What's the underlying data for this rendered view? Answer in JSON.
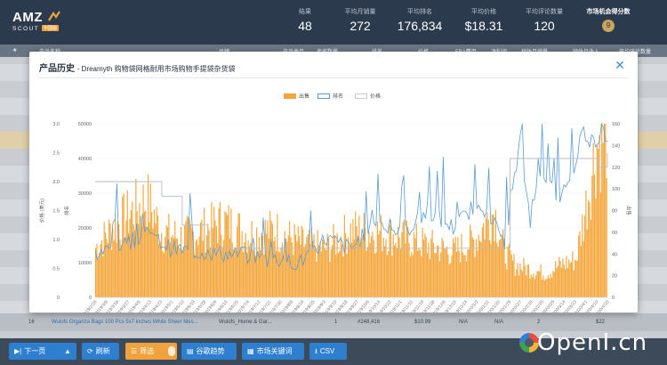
{
  "brand": {
    "name": "AMZ",
    "sub": "SCOUT",
    "badge": "中国版"
  },
  "header_stats": [
    {
      "label": "结果",
      "value": "48"
    },
    {
      "label": "平均月销量",
      "value": "272"
    },
    {
      "label": "平均排名",
      "value": "176,834"
    },
    {
      "label": "平均价格",
      "value": "$18.31"
    },
    {
      "label": "平均评论数量",
      "value": "120"
    },
    {
      "label": "市场机会得分数",
      "value": "9"
    }
  ],
  "table_header": [
    "产品名称",
    "品牌",
    "产品类目",
    "卖家数量",
    "排名",
    "价格",
    "FBA费用",
    "净利润",
    "预估月销量",
    "预估月收入",
    "平均评论数量"
  ],
  "visible_row": {
    "index": "16",
    "title": "Wulofs Organza Bags 100 Pcs 5x7 inches White Sheer Mes...",
    "brand": "Wulofs_Home & Gar...",
    "sellers": "1",
    "rank": "#248,416",
    "price": "$10.99",
    "fba": "N/A",
    "net": "N/A",
    "sales": "2",
    "revenue": "$22"
  },
  "toolbar": {
    "next_page": "下一页",
    "refresh": "刷新",
    "filter": "筛选",
    "google_trends": "谷歌趋势",
    "market_keywords": "市场关键词",
    "csv": "CSV"
  },
  "modal": {
    "title": "产品历史",
    "subtitle": "- Dreamyth 购物袋网格耐用市场购物手提袋杂货袋"
  },
  "watermark": "OpenI.cn",
  "colors": {
    "sales": "#f4a63a",
    "rank": "#5a9bd5",
    "price": "#c8cdd2",
    "header": "#2b3a4d",
    "modal_title_accent": "#3d8fd8"
  },
  "chart_data": {
    "type": "bar+line",
    "legend": [
      "出售",
      "排名",
      "价格"
    ],
    "y_price": {
      "label": "价格 (美元)",
      "ticks": [
        "0",
        "0.5",
        "1.0",
        "1.5",
        "2.0",
        "2.5",
        "3.0"
      ],
      "range": [
        0,
        3.0
      ]
    },
    "y_rank": {
      "label": "排名",
      "ticks": [
        "0",
        "10000",
        "20000",
        "30000",
        "40000",
        "50000"
      ],
      "range": [
        0,
        50000
      ]
    },
    "y_sales": {
      "label": "出售",
      "ticks": [
        "0",
        "20",
        "40",
        "60",
        "80",
        "100",
        "120",
        "140",
        "160"
      ],
      "range": [
        0,
        160
      ]
    },
    "x_ticks": [
      "2019/2/26",
      "2019/3/8",
      "2019/3/18",
      "2019/3/27",
      "2019/4/6",
      "2019/4/13",
      "2019/4/23",
      "2019/5/1",
      "2019/5/10",
      "2019/5/19",
      "2019/5/28",
      "2019/6/6",
      "2019/6/16",
      "2019/6/25",
      "2019/7/4",
      "2019/7/12",
      "2019/7/21",
      "2019/7/30",
      "2019/8/8",
      "2019/8/16",
      "2019/8/25",
      "2019/9/2",
      "2019/9/10",
      "2019/9/18",
      "2019/9/27",
      "2019/10/6",
      "2019/10/14",
      "2019/10/23",
      "2019/11/1",
      "2019/11/10",
      "2019/11/19",
      "2019/11/28",
      "2019/12/6",
      "2019/12/15",
      "2019/12/24",
      "2020/1/2",
      "2020/1/11",
      "2020/1/20",
      "2020/1/29",
      "2020/2/7",
      "2020/2/16",
      "2020/2/25",
      "2020/3/5",
      "2020/3/14",
      "2020/3/23",
      "2020/4/1",
      "2020/4/10",
      "2020/4/20"
    ],
    "sales_anchors": [
      [
        0,
        46
      ],
      [
        0.03,
        62
      ],
      [
        0.07,
        78
      ],
      [
        0.1,
        90
      ],
      [
        0.13,
        60
      ],
      [
        0.17,
        55
      ],
      [
        0.2,
        60
      ],
      [
        0.25,
        70
      ],
      [
        0.3,
        58
      ],
      [
        0.35,
        62
      ],
      [
        0.4,
        50
      ],
      [
        0.45,
        45
      ],
      [
        0.5,
        62
      ],
      [
        0.55,
        60
      ],
      [
        0.6,
        55
      ],
      [
        0.65,
        48
      ],
      [
        0.7,
        42
      ],
      [
        0.74,
        52
      ],
      [
        0.78,
        80
      ],
      [
        0.8,
        42
      ],
      [
        0.82,
        30
      ],
      [
        0.85,
        26
      ],
      [
        0.88,
        22
      ],
      [
        0.91,
        30
      ],
      [
        0.94,
        35
      ],
      [
        0.96,
        85
      ],
      [
        0.98,
        140
      ],
      [
        1.0,
        155
      ]
    ],
    "rank_anchors": [
      [
        0,
        12000
      ],
      [
        0.05,
        15000
      ],
      [
        0.1,
        18000
      ],
      [
        0.15,
        14000
      ],
      [
        0.2,
        13000
      ],
      [
        0.3,
        12000
      ],
      [
        0.4,
        10000
      ],
      [
        0.45,
        17000
      ],
      [
        0.5,
        14000
      ],
      [
        0.55,
        22000
      ],
      [
        0.6,
        18000
      ],
      [
        0.65,
        25000
      ],
      [
        0.7,
        20000
      ],
      [
        0.75,
        28000
      ],
      [
        0.8,
        16000
      ],
      [
        0.83,
        45000
      ],
      [
        0.85,
        20000
      ],
      [
        0.87,
        38000
      ],
      [
        0.9,
        28000
      ],
      [
        0.93,
        33000
      ],
      [
        0.95,
        48000
      ],
      [
        0.97,
        45000
      ],
      [
        1.0,
        47000
      ]
    ],
    "price_steps": [
      [
        0,
        2.0
      ],
      [
        0.11,
        2.0
      ],
      [
        0.13,
        1.75
      ],
      [
        0.17,
        1.25
      ],
      [
        0.21,
        1.25
      ],
      [
        0.22,
        0.85
      ],
      [
        0.8,
        0.85
      ],
      [
        0.81,
        2.4
      ],
      [
        0.96,
        2.4
      ],
      [
        0.98,
        2.25
      ],
      [
        1.0,
        2.5
      ]
    ]
  }
}
